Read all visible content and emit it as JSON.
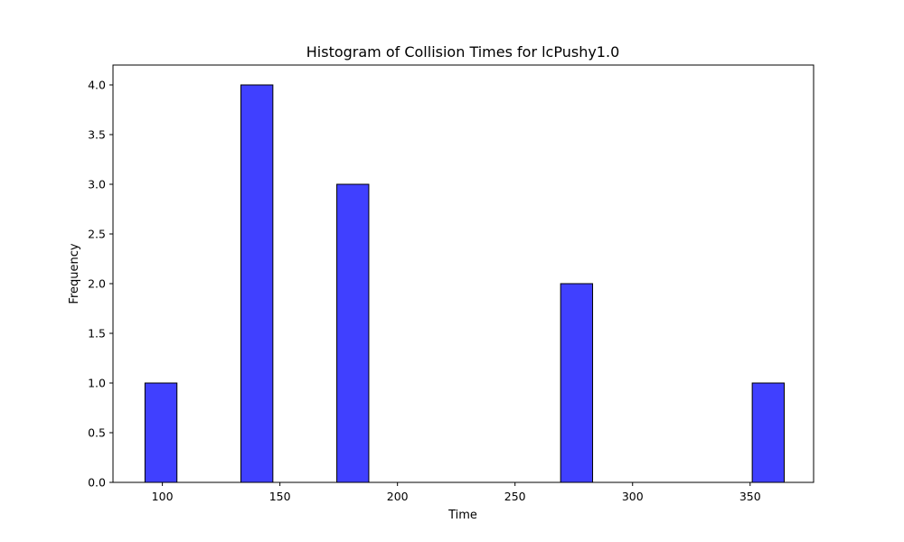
{
  "chart_data": {
    "type": "bar",
    "title": "Histogram of Collision Times for lcPushy1.0",
    "xlabel": "Time",
    "ylabel": "Frequency",
    "xlim": [
      79,
      377
    ],
    "ylim": [
      0,
      4.2
    ],
    "xticks": [
      100,
      150,
      200,
      250,
      300,
      350
    ],
    "xtick_labels": [
      "100",
      "150",
      "200",
      "250",
      "300",
      "350"
    ],
    "yticks": [
      0,
      0.5,
      1.0,
      1.5,
      2.0,
      2.5,
      3.0,
      3.5,
      4.0
    ],
    "ytick_labels": [
      "0.0",
      "0.5",
      "1.0",
      "1.5",
      "2.0",
      "2.5",
      "3.0",
      "3.5",
      "4.0"
    ],
    "bins": [
      {
        "start": 92.6,
        "end": 106.2,
        "count": 1
      },
      {
        "start": 133.4,
        "end": 147.0,
        "count": 4
      },
      {
        "start": 174.2,
        "end": 187.8,
        "count": 3
      },
      {
        "start": 269.4,
        "end": 283.0,
        "count": 2
      },
      {
        "start": 350.9,
        "end": 364.5,
        "count": 1
      }
    ],
    "grid": false,
    "colors": {
      "bar_fill": "#4040ff",
      "bar_edge": "#000000"
    }
  }
}
